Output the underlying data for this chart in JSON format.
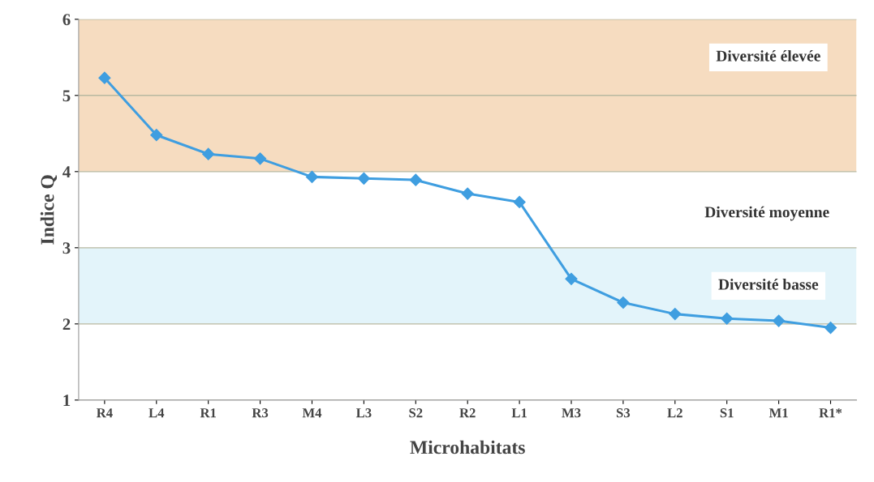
{
  "chart_data": {
    "type": "line",
    "xlabel": "Microhabitats",
    "ylabel": "Indice Q",
    "categories": [
      "R4",
      "L4",
      "R1",
      "R3",
      "M4",
      "L3",
      "S2",
      "R2",
      "L1",
      "M3",
      "S3",
      "L2",
      "S1",
      "M1",
      "R1*"
    ],
    "series": [
      {
        "color": "#3f9ee0",
        "values": [
          5.23,
          4.48,
          4.23,
          4.17,
          3.93,
          3.91,
          3.89,
          3.71,
          3.6,
          2.59,
          2.28,
          2.13,
          2.07,
          2.04,
          1.95
        ]
      }
    ],
    "ylim": [
      1,
      6
    ],
    "yticks": [
      1,
      2,
      3,
      4,
      5,
      6
    ],
    "grid": "y",
    "annotations": [
      "Diversité moyenne"
    ],
    "marker": "diamond",
    "line_style": "solid",
    "bands": [
      {
        "axis": "y",
        "from": 4,
        "to": 6,
        "label": "Diversité élevée",
        "color": "#f6dcc0"
      },
      {
        "axis": "y",
        "from": 2,
        "to": 3,
        "label": "Diversité basse",
        "color": "#e3f4fa"
      }
    ]
  }
}
